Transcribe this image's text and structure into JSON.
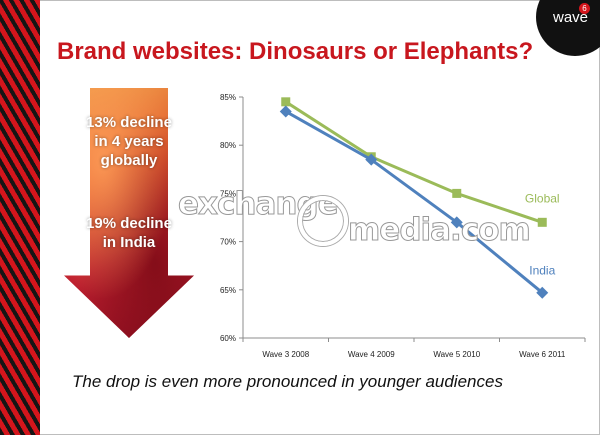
{
  "slide": {
    "title": "Brand websites: Dinosaurs or Elephants?",
    "logo_text": "wave",
    "logo_badge": "6",
    "arrow_text_1": "13% decline in 4 years globally",
    "arrow_text_2": "19% decline in India",
    "footer": "The drop is even more pronounced in younger audiences",
    "watermark_left": "exchange",
    "watermark_right": "media.com"
  },
  "colors": {
    "title": "#c8171e",
    "global": "#9bbb59",
    "india": "#4f81bd",
    "stripe_red": "#d4151c",
    "stripe_black": "#151515"
  },
  "chart_data": {
    "type": "line",
    "categories": [
      "Wave 3 2008",
      "Wave 4 2009",
      "Wave 5 2010",
      "Wave 6 2011"
    ],
    "series": [
      {
        "name": "Global",
        "values": [
          84.5,
          78.8,
          75.0,
          72.0
        ]
      },
      {
        "name": "India",
        "values": [
          83.5,
          78.5,
          72.0,
          64.7
        ]
      }
    ],
    "y_ticks": [
      "85%",
      "80%",
      "75%",
      "70%",
      "65%",
      "60%"
    ],
    "ylim": [
      60,
      85
    ],
    "grid": false,
    "legend": "labels at line ends"
  }
}
